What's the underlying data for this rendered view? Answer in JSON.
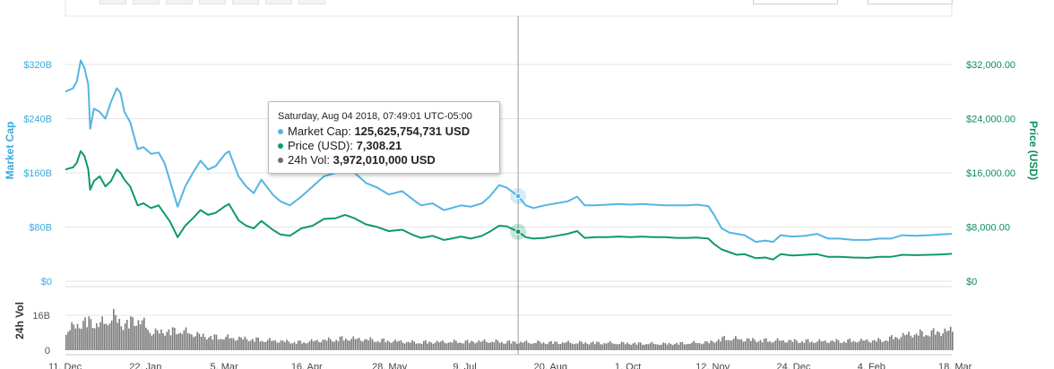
{
  "chart_data": {
    "type": "line",
    "axes": {
      "left": {
        "title": "Market Cap",
        "ticks": [
          "$0",
          "$80B",
          "$160B",
          "$240B",
          "$320B"
        ],
        "values": [
          0,
          80,
          160,
          240,
          320
        ],
        "unit": "B USD"
      },
      "right": {
        "title": "Price (USD)",
        "ticks": [
          "$0",
          "$8,000.00",
          "$16,000.00",
          "$24,000.00",
          "$32,000.00"
        ],
        "values": [
          0,
          8000,
          16000,
          24000,
          32000
        ]
      },
      "volume": {
        "title": "24h Vol",
        "ticks": [
          "0",
          "16B"
        ],
        "values": [
          0,
          16
        ],
        "ylim": [
          0,
          26
        ]
      },
      "x": {
        "ticks": [
          "11. Dec",
          "22. Jan",
          "5. Mar",
          "16. Apr",
          "28. May",
          "9. Jul",
          "20. Aug",
          "1. Oct",
          "12. Nov",
          "24. Dec",
          "4. Feb",
          "18. Mar"
        ]
      }
    },
    "x_range": [
      "2017-12-09",
      "2019-03-20"
    ],
    "series": [
      {
        "name": "Market Cap",
        "axis": "left",
        "color": "#54b5e3",
        "points": [
          [
            "2017-12-09",
            280
          ],
          [
            "2017-12-13",
            285
          ],
          [
            "2017-12-15",
            295
          ],
          [
            "2017-12-17",
            326
          ],
          [
            "2017-12-19",
            315
          ],
          [
            "2017-12-21",
            290
          ],
          [
            "2017-12-22",
            225
          ],
          [
            "2017-12-24",
            255
          ],
          [
            "2017-12-27",
            250
          ],
          [
            "2017-12-30",
            240
          ],
          [
            "2018-01-02",
            265
          ],
          [
            "2018-01-05",
            285
          ],
          [
            "2018-01-07",
            278
          ],
          [
            "2018-01-09",
            250
          ],
          [
            "2018-01-12",
            235
          ],
          [
            "2018-01-16",
            195
          ],
          [
            "2018-01-19",
            198
          ],
          [
            "2018-01-23",
            188
          ],
          [
            "2018-01-27",
            190
          ],
          [
            "2018-01-30",
            175
          ],
          [
            "2018-02-02",
            148
          ],
          [
            "2018-02-06",
            110
          ],
          [
            "2018-02-10",
            140
          ],
          [
            "2018-02-14",
            160
          ],
          [
            "2018-02-18",
            178
          ],
          [
            "2018-02-22",
            165
          ],
          [
            "2018-02-26",
            170
          ],
          [
            "2018-03-03",
            188
          ],
          [
            "2018-03-05",
            192
          ],
          [
            "2018-03-10",
            155
          ],
          [
            "2018-03-14",
            140
          ],
          [
            "2018-03-18",
            130
          ],
          [
            "2018-03-22",
            150
          ],
          [
            "2018-03-28",
            128
          ],
          [
            "2018-04-01",
            118
          ],
          [
            "2018-04-06",
            112
          ],
          [
            "2018-04-12",
            125
          ],
          [
            "2018-04-18",
            140
          ],
          [
            "2018-04-24",
            155
          ],
          [
            "2018-04-30",
            160
          ],
          [
            "2018-05-05",
            168
          ],
          [
            "2018-05-10",
            160
          ],
          [
            "2018-05-16",
            145
          ],
          [
            "2018-05-22",
            138
          ],
          [
            "2018-05-28",
            128
          ],
          [
            "2018-06-04",
            133
          ],
          [
            "2018-06-10",
            120
          ],
          [
            "2018-06-14",
            112
          ],
          [
            "2018-06-20",
            115
          ],
          [
            "2018-06-26",
            105
          ],
          [
            "2018-06-30",
            108
          ],
          [
            "2018-07-05",
            112
          ],
          [
            "2018-07-10",
            110
          ],
          [
            "2018-07-16",
            115
          ],
          [
            "2018-07-20",
            125
          ],
          [
            "2018-07-25",
            142
          ],
          [
            "2018-07-29",
            138
          ],
          [
            "2018-08-04",
            125.6
          ],
          [
            "2018-08-08",
            112
          ],
          [
            "2018-08-12",
            108
          ],
          [
            "2018-08-18",
            112
          ],
          [
            "2018-08-24",
            115
          ],
          [
            "2018-08-30",
            118
          ],
          [
            "2018-09-04",
            125
          ],
          [
            "2018-09-08",
            112
          ],
          [
            "2018-09-14",
            112
          ],
          [
            "2018-09-20",
            113
          ],
          [
            "2018-09-26",
            114
          ],
          [
            "2018-10-02",
            113
          ],
          [
            "2018-10-08",
            114
          ],
          [
            "2018-10-14",
            113
          ],
          [
            "2018-10-20",
            112
          ],
          [
            "2018-10-26",
            112
          ],
          [
            "2018-11-01",
            112
          ],
          [
            "2018-11-06",
            113
          ],
          [
            "2018-11-12",
            111
          ],
          [
            "2018-11-15",
            98
          ],
          [
            "2018-11-19",
            78
          ],
          [
            "2018-11-23",
            72
          ],
          [
            "2018-11-27",
            70
          ],
          [
            "2018-12-01",
            68
          ],
          [
            "2018-12-07",
            58
          ],
          [
            "2018-12-12",
            60
          ],
          [
            "2018-12-16",
            58
          ],
          [
            "2018-12-20",
            68
          ],
          [
            "2018-12-26",
            66
          ],
          [
            "2019-01-02",
            67
          ],
          [
            "2019-01-08",
            70
          ],
          [
            "2019-01-14",
            63
          ],
          [
            "2019-01-20",
            63
          ],
          [
            "2019-01-27",
            61
          ],
          [
            "2019-02-04",
            61
          ],
          [
            "2019-02-10",
            63
          ],
          [
            "2019-02-16",
            63
          ],
          [
            "2019-02-22",
            68
          ],
          [
            "2019-03-01",
            67
          ],
          [
            "2019-03-08",
            68
          ],
          [
            "2019-03-14",
            69
          ],
          [
            "2019-03-20",
            70
          ]
        ]
      },
      {
        "name": "Price (USD)",
        "axis": "right",
        "color": "#0f9a68",
        "points": [
          [
            "2017-12-09",
            16500
          ],
          [
            "2017-12-13",
            16800
          ],
          [
            "2017-12-15",
            17500
          ],
          [
            "2017-12-17",
            19200
          ],
          [
            "2017-12-19",
            18500
          ],
          [
            "2017-12-21",
            16500
          ],
          [
            "2017-12-22",
            13500
          ],
          [
            "2017-12-24",
            14800
          ],
          [
            "2017-12-27",
            15500
          ],
          [
            "2017-12-30",
            14000
          ],
          [
            "2018-01-02",
            14800
          ],
          [
            "2018-01-05",
            16500
          ],
          [
            "2018-01-07",
            16000
          ],
          [
            "2018-01-09",
            15000
          ],
          [
            "2018-01-12",
            14000
          ],
          [
            "2018-01-16",
            11200
          ],
          [
            "2018-01-19",
            11500
          ],
          [
            "2018-01-23",
            10800
          ],
          [
            "2018-01-27",
            11200
          ],
          [
            "2018-01-30",
            10000
          ],
          [
            "2018-02-02",
            8800
          ],
          [
            "2018-02-06",
            6500
          ],
          [
            "2018-02-10",
            8200
          ],
          [
            "2018-02-14",
            9300
          ],
          [
            "2018-02-18",
            10500
          ],
          [
            "2018-02-22",
            9800
          ],
          [
            "2018-02-26",
            10100
          ],
          [
            "2018-03-03",
            11100
          ],
          [
            "2018-03-05",
            11400
          ],
          [
            "2018-03-10",
            9000
          ],
          [
            "2018-03-14",
            8200
          ],
          [
            "2018-03-18",
            7800
          ],
          [
            "2018-03-22",
            8900
          ],
          [
            "2018-03-28",
            7600
          ],
          [
            "2018-04-01",
            6900
          ],
          [
            "2018-04-06",
            6700
          ],
          [
            "2018-04-12",
            7800
          ],
          [
            "2018-04-18",
            8200
          ],
          [
            "2018-04-24",
            9200
          ],
          [
            "2018-04-30",
            9300
          ],
          [
            "2018-05-05",
            9800
          ],
          [
            "2018-05-10",
            9300
          ],
          [
            "2018-05-16",
            8400
          ],
          [
            "2018-05-22",
            8000
          ],
          [
            "2018-05-28",
            7400
          ],
          [
            "2018-06-04",
            7600
          ],
          [
            "2018-06-10",
            6800
          ],
          [
            "2018-06-14",
            6400
          ],
          [
            "2018-06-20",
            6700
          ],
          [
            "2018-06-26",
            6100
          ],
          [
            "2018-06-30",
            6300
          ],
          [
            "2018-07-05",
            6600
          ],
          [
            "2018-07-10",
            6300
          ],
          [
            "2018-07-16",
            6700
          ],
          [
            "2018-07-20",
            7300
          ],
          [
            "2018-07-25",
            8200
          ],
          [
            "2018-07-29",
            8100
          ],
          [
            "2018-08-04",
            7308.21
          ],
          [
            "2018-08-08",
            6500
          ],
          [
            "2018-08-12",
            6300
          ],
          [
            "2018-08-18",
            6400
          ],
          [
            "2018-08-24",
            6700
          ],
          [
            "2018-08-30",
            7000
          ],
          [
            "2018-09-04",
            7400
          ],
          [
            "2018-09-08",
            6400
          ],
          [
            "2018-09-14",
            6500
          ],
          [
            "2018-09-20",
            6500
          ],
          [
            "2018-09-26",
            6600
          ],
          [
            "2018-10-02",
            6500
          ],
          [
            "2018-10-08",
            6600
          ],
          [
            "2018-10-14",
            6500
          ],
          [
            "2018-10-20",
            6500
          ],
          [
            "2018-10-26",
            6400
          ],
          [
            "2018-11-01",
            6400
          ],
          [
            "2018-11-06",
            6450
          ],
          [
            "2018-11-12",
            6300
          ],
          [
            "2018-11-15",
            5500
          ],
          [
            "2018-11-19",
            4700
          ],
          [
            "2018-11-23",
            4300
          ],
          [
            "2018-11-27",
            3900
          ],
          [
            "2018-12-01",
            4000
          ],
          [
            "2018-12-07",
            3400
          ],
          [
            "2018-12-12",
            3500
          ],
          [
            "2018-12-16",
            3200
          ],
          [
            "2018-12-20",
            4000
          ],
          [
            "2018-12-26",
            3800
          ],
          [
            "2019-01-02",
            3900
          ],
          [
            "2019-01-08",
            4000
          ],
          [
            "2019-01-14",
            3600
          ],
          [
            "2019-01-20",
            3600
          ],
          [
            "2019-01-27",
            3500
          ],
          [
            "2019-02-04",
            3450
          ],
          [
            "2019-02-10",
            3600
          ],
          [
            "2019-02-16",
            3600
          ],
          [
            "2019-02-22",
            3900
          ],
          [
            "2019-03-01",
            3850
          ],
          [
            "2019-03-08",
            3900
          ],
          [
            "2019-03-14",
            3950
          ],
          [
            "2019-03-20",
            4050
          ]
        ]
      },
      {
        "name": "24h Vol",
        "axis": "volume",
        "type": "bar",
        "color": "#7a7a7a",
        "points": [
          [
            "2017-12-09",
            10
          ],
          [
            "2017-12-20",
            15
          ],
          [
            "2017-12-27",
            13
          ],
          [
            "2018-01-03",
            17
          ],
          [
            "2018-01-08",
            13
          ],
          [
            "2018-01-16",
            16
          ],
          [
            "2018-01-23",
            9
          ],
          [
            "2018-02-06",
            10
          ],
          [
            "2018-02-20",
            7
          ],
          [
            "2018-03-10",
            6
          ],
          [
            "2018-04-10",
            4
          ],
          [
            "2018-05-05",
            6
          ],
          [
            "2018-06-10",
            4
          ],
          [
            "2018-07-20",
            4.5
          ],
          [
            "2018-08-04",
            4
          ],
          [
            "2018-09-10",
            3.8
          ],
          [
            "2018-10-20",
            3.2
          ],
          [
            "2018-11-12",
            4
          ],
          [
            "2018-11-20",
            6
          ],
          [
            "2018-12-10",
            5
          ],
          [
            "2019-01-10",
            4.5
          ],
          [
            "2019-02-10",
            5
          ],
          [
            "2019-02-25",
            8
          ],
          [
            "2019-03-10",
            9
          ],
          [
            "2019-03-20",
            10
          ]
        ]
      }
    ],
    "tooltip": {
      "date": "Saturday, Aug 04 2018, 07:49:01 UTC-05:00",
      "market_cap_label": "Market Cap:",
      "market_cap_value": "125,625,754,731 USD",
      "price_label": "Price (USD):",
      "price_value": "7,308.21",
      "vol_label": "24h Vol:",
      "vol_value": "3,972,010,000 USD"
    },
    "crosshair_x": "2018-08-04",
    "grid": true,
    "legend": "none"
  }
}
